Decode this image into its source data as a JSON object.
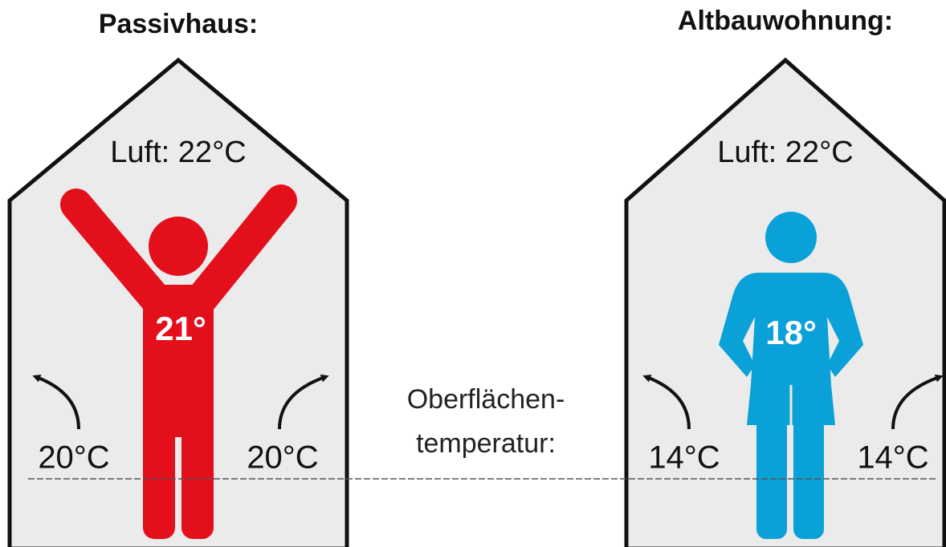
{
  "houses": [
    {
      "title": "Passivhaus:",
      "air": "Luft: 22°C",
      "body": "21°",
      "wall_left": "20°C",
      "wall_right": "20°C"
    },
    {
      "title": "Altbauwohnung:",
      "air": "Luft: 22°C",
      "body": "18°",
      "wall_left": "14°C",
      "wall_right": "14°C"
    }
  ],
  "surface_label": [
    "Oberflächen-",
    "temperatur:"
  ]
}
